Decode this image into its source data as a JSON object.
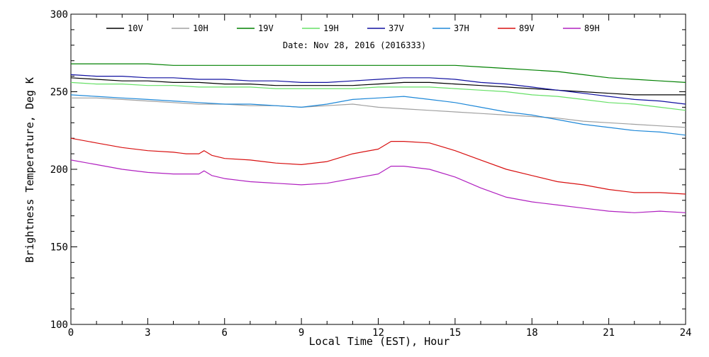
{
  "chart_data": {
    "type": "line",
    "xlabel": "Local Time (EST), Hour",
    "ylabel": "Brightness Temperature, Deg K",
    "annotation": "Date: Nov 28, 2016 (2016333)",
    "xlim": [
      0,
      24
    ],
    "ylim": [
      100,
      300
    ],
    "xticks": [
      0,
      3,
      6,
      9,
      12,
      15,
      18,
      21,
      24
    ],
    "yticks": [
      100,
      150,
      200,
      250,
      300
    ],
    "x_minor_step": 1,
    "y_minor_step": 10,
    "grid": false,
    "legend_position": "top",
    "legend_layout": "single-row",
    "series": [
      {
        "name": "10V",
        "color": "#000000",
        "x": [
          0,
          1,
          2,
          3,
          4,
          5,
          6,
          7,
          8,
          9,
          10,
          11,
          12,
          13,
          14,
          15,
          16,
          17,
          18,
          19,
          20,
          21,
          22,
          23,
          24
        ],
        "values": [
          259,
          258,
          257,
          257,
          256,
          256,
          255,
          255,
          254,
          254,
          254,
          254,
          255,
          256,
          256,
          255,
          254,
          253,
          252,
          251,
          250,
          249,
          248,
          248,
          248
        ]
      },
      {
        "name": "10H",
        "color": "#a0a0a0",
        "x": [
          0,
          1,
          2,
          3,
          4,
          5,
          6,
          7,
          8,
          9,
          10,
          11,
          12,
          13,
          14,
          15,
          16,
          17,
          18,
          19,
          20,
          21,
          22,
          23,
          24
        ],
        "values": [
          246,
          246,
          245,
          244,
          243,
          242,
          242,
          241,
          241,
          240,
          241,
          242,
          240,
          239,
          238,
          237,
          236,
          235,
          234,
          233,
          231,
          230,
          229,
          228,
          227
        ]
      },
      {
        "name": "19V",
        "color": "#008000",
        "x": [
          0,
          1,
          2,
          3,
          4,
          5,
          6,
          7,
          8,
          9,
          10,
          11,
          12,
          13,
          14,
          15,
          16,
          17,
          18,
          19,
          20,
          21,
          22,
          23,
          24
        ],
        "values": [
          268,
          268,
          268,
          268,
          267,
          267,
          267,
          267,
          267,
          267,
          267,
          267,
          267,
          267,
          267,
          267,
          266,
          265,
          264,
          263,
          261,
          259,
          258,
          257,
          256
        ]
      },
      {
        "name": "19H",
        "color": "#66e066",
        "x": [
          0,
          1,
          2,
          3,
          4,
          5,
          6,
          7,
          8,
          9,
          10,
          11,
          12,
          13,
          14,
          15,
          16,
          17,
          18,
          19,
          20,
          21,
          22,
          23,
          24
        ],
        "values": [
          256,
          255,
          255,
          254,
          254,
          253,
          253,
          253,
          252,
          252,
          252,
          252,
          253,
          253,
          253,
          252,
          251,
          250,
          248,
          247,
          245,
          243,
          242,
          240,
          238
        ]
      },
      {
        "name": "37V",
        "color": "#1010a0",
        "x": [
          0,
          1,
          2,
          3,
          4,
          5,
          6,
          7,
          8,
          9,
          10,
          11,
          12,
          13,
          14,
          15,
          16,
          17,
          18,
          19,
          20,
          21,
          22,
          23,
          24
        ],
        "values": [
          261,
          260,
          260,
          259,
          259,
          258,
          258,
          257,
          257,
          256,
          256,
          257,
          258,
          259,
          259,
          258,
          256,
          255,
          253,
          251,
          249,
          247,
          245,
          244,
          242
        ]
      },
      {
        "name": "37H",
        "color": "#1e88d8",
        "x": [
          0,
          1,
          2,
          3,
          4,
          5,
          6,
          7,
          8,
          9,
          10,
          11,
          12,
          13,
          14,
          15,
          16,
          17,
          18,
          19,
          20,
          21,
          22,
          23,
          24
        ],
        "values": [
          248,
          247,
          246,
          245,
          244,
          243,
          242,
          242,
          241,
          240,
          242,
          245,
          246,
          247,
          245,
          243,
          240,
          237,
          235,
          232,
          229,
          227,
          225,
          224,
          222
        ]
      },
      {
        "name": "89V",
        "color": "#d81010",
        "x": [
          0,
          1,
          2,
          3,
          4,
          4.5,
          5,
          5.2,
          5.5,
          6,
          7,
          8,
          9,
          10,
          11,
          12,
          12.5,
          13,
          14,
          15,
          16,
          17,
          18,
          19,
          20,
          21,
          22,
          23,
          24
        ],
        "values": [
          220,
          217,
          214,
          212,
          211,
          210,
          210,
          212,
          209,
          207,
          206,
          204,
          203,
          205,
          210,
          213,
          218,
          218,
          217,
          212,
          206,
          200,
          196,
          192,
          190,
          187,
          185,
          185,
          184
        ]
      },
      {
        "name": "89H",
        "color": "#b020c0",
        "x": [
          0,
          1,
          2,
          3,
          4,
          4.5,
          5,
          5.2,
          5.5,
          6,
          7,
          8,
          9,
          10,
          11,
          12,
          12.5,
          13,
          14,
          15,
          16,
          17,
          18,
          19,
          20,
          21,
          22,
          23,
          24
        ],
        "values": [
          206,
          203,
          200,
          198,
          197,
          197,
          197,
          199,
          196,
          194,
          192,
          191,
          190,
          191,
          194,
          197,
          202,
          202,
          200,
          195,
          188,
          182,
          179,
          177,
          175,
          173,
          172,
          173,
          172
        ]
      }
    ]
  }
}
